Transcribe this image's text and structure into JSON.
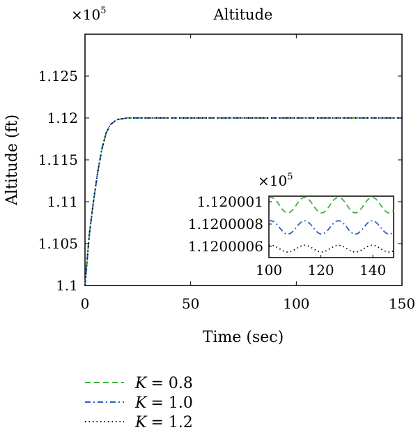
{
  "chart_data": [
    {
      "type": "line",
      "title": "Altitude",
      "scale_label": "×10",
      "scale_exponent": "5",
      "xlabel": "Time (sec)",
      "ylabel": "Altitude (ft)",
      "xlim": [
        0,
        150
      ],
      "ylim": [
        1.1,
        1.13
      ],
      "xticks": [
        "0",
        "50",
        "100",
        "150"
      ],
      "yticks": [
        "1.1",
        "1.105",
        "1.11",
        "1.115",
        "1.12",
        "1.125"
      ],
      "grid": false,
      "legend_position": "bottom-left (below plot)",
      "series": [
        {
          "name": "K = 0.8",
          "symbol": "K",
          "value": "= 0.8",
          "color": "#3cb33c",
          "style": "dashed",
          "x": [
            0,
            2,
            4,
            6,
            8,
            10,
            12,
            15,
            20,
            30,
            50,
            150
          ],
          "y": [
            1.1,
            1.106,
            1.11,
            1.1135,
            1.1163,
            1.1182,
            1.1192,
            1.1198,
            1.12,
            1.12,
            1.12,
            1.12
          ]
        },
        {
          "name": "K = 1.0",
          "symbol": "K",
          "value": "= 1.0",
          "color": "#2b5fc2",
          "style": "dashdot",
          "x": [
            0,
            2,
            4,
            6,
            8,
            10,
            12,
            15,
            20,
            30,
            50,
            150
          ],
          "y": [
            1.1,
            1.106,
            1.11,
            1.1135,
            1.1163,
            1.1182,
            1.1192,
            1.1198,
            1.12,
            1.12,
            1.12,
            1.12
          ]
        },
        {
          "name": "K = 1.2",
          "symbol": "K",
          "value": "= 1.2",
          "color": "#000000",
          "style": "dotted",
          "x": [
            0,
            2,
            4,
            6,
            8,
            10,
            12,
            15,
            20,
            30,
            50,
            150
          ],
          "y": [
            1.1,
            1.106,
            1.11,
            1.1135,
            1.1163,
            1.1182,
            1.1192,
            1.1198,
            1.12,
            1.12,
            1.12,
            1.12
          ]
        }
      ]
    },
    {
      "type": "line",
      "scale_label": "×10",
      "scale_exponent": "5",
      "xlim": [
        100,
        148
      ],
      "ylim": [
        1.1200005,
        1.12000105
      ],
      "xticks": [
        "100",
        "120",
        "140"
      ],
      "yticks": [
        "1.120001",
        "1.1200008",
        "1.1200006"
      ],
      "ytick_values": [
        1.120001,
        1.1200008,
        1.1200006
      ],
      "grid": false,
      "series": [
        {
          "name": "K = 0.8",
          "color": "#3cb33c",
          "style": "dashed",
          "mean": 1.12000097,
          "amplitude": 7e-08,
          "period": 13
        },
        {
          "name": "K = 1.0",
          "color": "#2b5fc2",
          "style": "dashdot",
          "mean": 1.12000077,
          "amplitude": 6e-08,
          "period": 13
        },
        {
          "name": "K = 1.2",
          "color": "#000000",
          "style": "dotted",
          "mean": 1.12000058,
          "amplitude": 3e-08,
          "period": 13
        }
      ]
    }
  ]
}
